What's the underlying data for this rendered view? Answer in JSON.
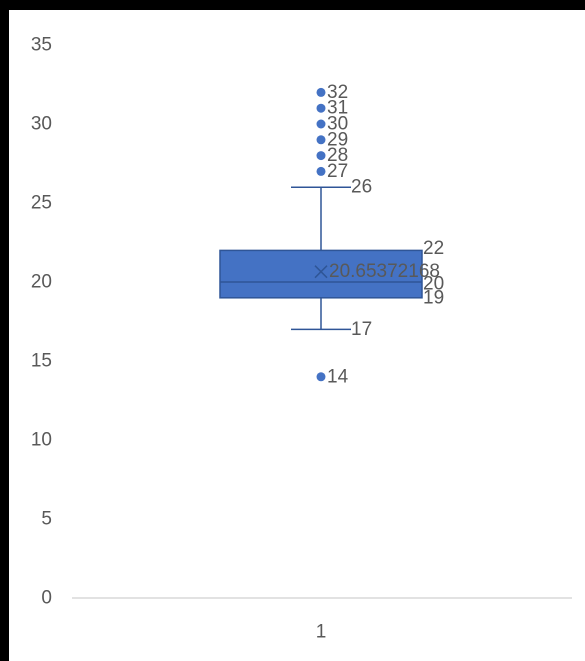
{
  "chart_data": {
    "type": "box",
    "title": "",
    "xlabel": "",
    "ylabel": "",
    "ylim": [
      0,
      35
    ],
    "yticks": [
      0,
      5,
      10,
      15,
      20,
      25,
      30,
      35
    ],
    "categories": [
      "1"
    ],
    "grid": false,
    "box": {
      "category": "1",
      "q1": 19,
      "median": 20,
      "q3": 22,
      "mean": 20.65372168,
      "whisker_low": 17,
      "whisker_high": 26,
      "outliers": [
        14,
        27,
        28,
        29,
        30,
        31,
        32
      ]
    },
    "data_labels": {
      "q1": "19",
      "median": "20",
      "q3": "22",
      "mean": "20.65372168",
      "whisker_low": "17",
      "whisker_high": "26",
      "outliers": [
        "14",
        "27",
        "28",
        "29",
        "30",
        "31",
        "32"
      ]
    },
    "colors": {
      "box_fill": "#4472c4",
      "box_edge": "#2f5597",
      "axis": "#d9d9d9",
      "text": "#595959",
      "frame": "#000000"
    }
  }
}
